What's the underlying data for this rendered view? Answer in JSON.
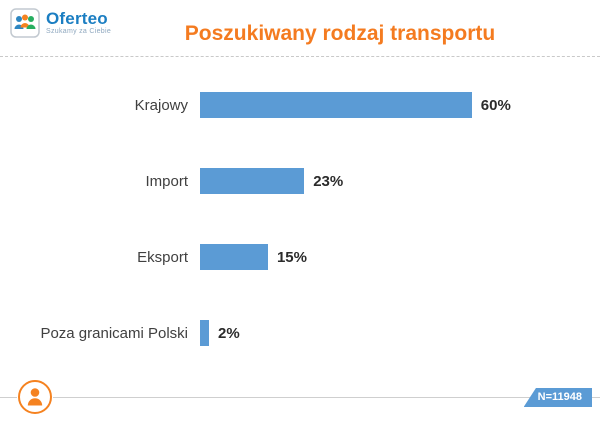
{
  "header": {
    "logo": {
      "name": "Oferteo",
      "tagline": "Szukamy za Ciebie"
    }
  },
  "chart_data": {
    "type": "bar",
    "orientation": "horizontal",
    "title": "Poszukiwany rodzaj transportu",
    "categories": [
      "Krajowy",
      "Import",
      "Eksport",
      "Poza granicami Polski"
    ],
    "values": [
      60,
      23,
      15,
      2
    ],
    "value_labels": [
      "60%",
      "23%",
      "15%",
      "2%"
    ],
    "unit": "%",
    "xlim": [
      0,
      100
    ],
    "grid": false,
    "legend": false,
    "bar_color": "#5b9bd5",
    "title_color": "#f47b20",
    "sample_label": "N=11948"
  }
}
